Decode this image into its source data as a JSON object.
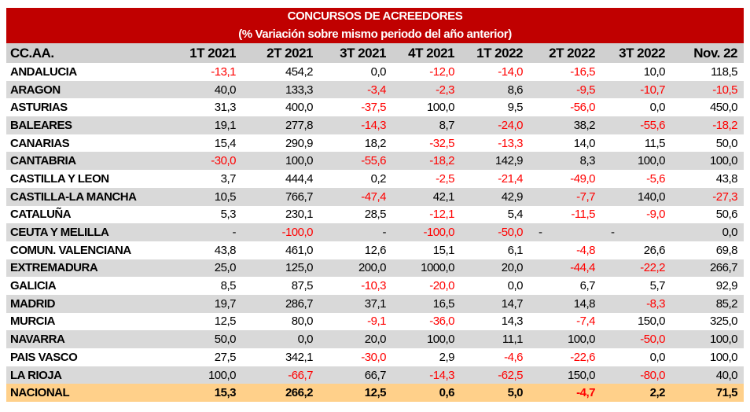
{
  "title": "CONCURSOS DE ACREEDORES",
  "subtitle": "(% Variación sobre mismo periodo del año anterior)",
  "colors": {
    "header_bg": "#c00000",
    "stripe": "#d9d9d9",
    "total_bg": "#ffd08a",
    "negative": "#ff0000"
  },
  "columns": [
    "CC.AA.",
    "1T 2021",
    "2T 2021",
    "3T 2021",
    "4T 2021",
    "1T 2022",
    "2T 2022",
    "3T 2022",
    "Nov. 22"
  ],
  "rows": [
    {
      "region": "ANDALUCIA",
      "values": [
        "-13,1",
        "454,2",
        "0,0",
        "-12,0",
        "-14,0",
        "-16,5",
        "10,0",
        "118,5"
      ]
    },
    {
      "region": "ARAGON",
      "values": [
        "40,0",
        "133,3",
        "-3,4",
        "-2,3",
        "8,6",
        "-9,5",
        "-10,7",
        "-10,5"
      ]
    },
    {
      "region": "ASTURIAS",
      "values": [
        "31,3",
        "400,0",
        "-37,5",
        "100,0",
        "9,5",
        "-56,0",
        "0,0",
        "450,0"
      ]
    },
    {
      "region": "BALEARES",
      "values": [
        "19,1",
        "277,8",
        "-14,3",
        "8,7",
        "-24,0",
        "38,2",
        "-55,6",
        "-18,2"
      ]
    },
    {
      "region": "CANARIAS",
      "values": [
        "15,4",
        "290,9",
        "18,2",
        "-32,5",
        "-13,3",
        "14,0",
        "11,5",
        "50,0"
      ]
    },
    {
      "region": "CANTABRIA",
      "values": [
        "-30,0",
        "100,0",
        "-55,6",
        "-18,2",
        "142,9",
        "8,3",
        "100,0",
        "100,0"
      ]
    },
    {
      "region": "CASTILLA Y LEON",
      "values": [
        "3,7",
        "444,4",
        "0,2",
        "-2,5",
        "-21,4",
        "-49,0",
        "-5,6",
        "43,8"
      ]
    },
    {
      "region": "CASTILLA-LA MANCHA",
      "values": [
        "10,5",
        "766,7",
        "-47,4",
        "42,1",
        "42,9",
        "-7,7",
        "140,0",
        "-27,3"
      ]
    },
    {
      "region": "CATALUÑA",
      "values": [
        "5,3",
        "230,1",
        "28,5",
        "-12,1",
        "5,4",
        "-11,5",
        "-9,0",
        "50,6"
      ]
    },
    {
      "region": "CEUTA Y MELILLA",
      "values": [
        "-",
        "-100,0",
        "-",
        "-100,0",
        "-50,0",
        "-",
        "-",
        "0,0"
      ]
    },
    {
      "region": "COMUN. VALENCIANA",
      "values": [
        "43,8",
        "461,0",
        "12,6",
        "15,1",
        "6,1",
        "-4,8",
        "26,6",
        "69,8"
      ]
    },
    {
      "region": "EXTREMADURA",
      "values": [
        "25,0",
        "125,0",
        "200,0",
        "1000,0",
        "20,0",
        "-44,4",
        "-22,2",
        "266,7"
      ]
    },
    {
      "region": "GALICIA",
      "values": [
        "8,5",
        "87,5",
        "-10,3",
        "-20,0",
        "0,0",
        "6,7",
        "5,7",
        "92,9"
      ]
    },
    {
      "region": "MADRID",
      "values": [
        "19,7",
        "286,7",
        "37,1",
        "16,5",
        "14,7",
        "14,8",
        "-8,3",
        "85,2"
      ]
    },
    {
      "region": "MURCIA",
      "values": [
        "12,5",
        "80,0",
        "-9,1",
        "-36,0",
        "14,3",
        "-7,4",
        "150,0",
        "325,0"
      ]
    },
    {
      "region": "NAVARRA",
      "values": [
        "50,0",
        "0,0",
        "20,0",
        "100,0",
        "11,1",
        "100,0",
        "-50,0",
        "100,0"
      ]
    },
    {
      "region": "PAIS VASCO",
      "values": [
        "27,5",
        "342,1",
        "-30,0",
        "2,9",
        "-4,6",
        "-22,6",
        "0,0",
        "100,0"
      ]
    },
    {
      "region": "LA RIOJA",
      "values": [
        "100,0",
        "-66,7",
        "66,7",
        "-14,3",
        "-62,5",
        "150,0",
        "-80,0",
        "40,0"
      ]
    }
  ],
  "total": {
    "region": "NACIONAL",
    "values": [
      "15,3",
      "266,2",
      "12,5",
      "0,6",
      "5,0",
      "-4,7",
      "2,2",
      "71,5"
    ]
  }
}
